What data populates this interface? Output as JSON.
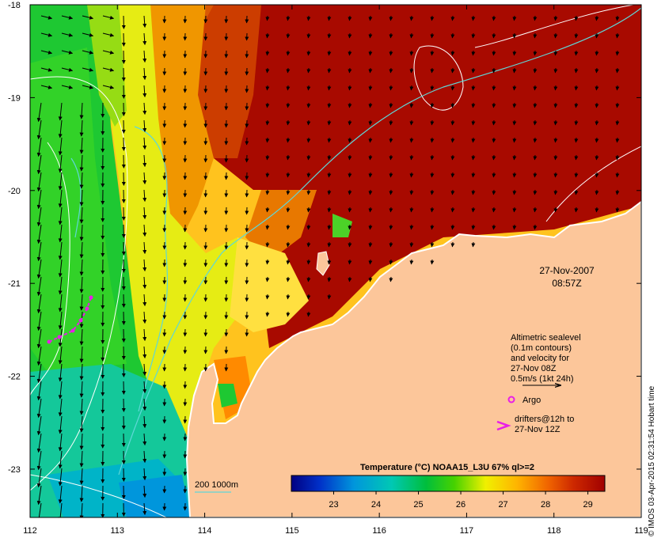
{
  "map": {
    "date": "27-Nov-2007",
    "time": "08:57Z",
    "lon_ticks": [
      "112",
      "113",
      "114",
      "115",
      "116",
      "117",
      "118",
      "119"
    ],
    "lat_ticks": [
      "-18",
      "-19",
      "-20",
      "-21",
      "-22",
      "-23"
    ]
  },
  "legend": {
    "sealevel_lines": [
      "Altimetric sealevel",
      "(0.1m contours)",
      "and velocity for",
      "27-Nov 08Z",
      "0.5m/s (1kt 24h)"
    ],
    "argo_label": "Argo",
    "drifters_lines": [
      "drifters@12h to",
      "27-Nov 12Z"
    ],
    "bathymetry_label": "200  1000m",
    "argo_color": "#e81ee8",
    "drifter_color": "#e81ee8",
    "land_color": "#fcc69a",
    "contour_color": "#5fd7d7"
  },
  "colorbar": {
    "title": "Temperature (°C) NOAA15_L3U 67% ql>=2",
    "ticks": [
      "23",
      "24",
      "25",
      "26",
      "27",
      "28",
      "29"
    ],
    "range": [
      22,
      29.4
    ]
  },
  "credit": "© IMOS 03-Apr-2015 02:31:54 Hobart time"
}
